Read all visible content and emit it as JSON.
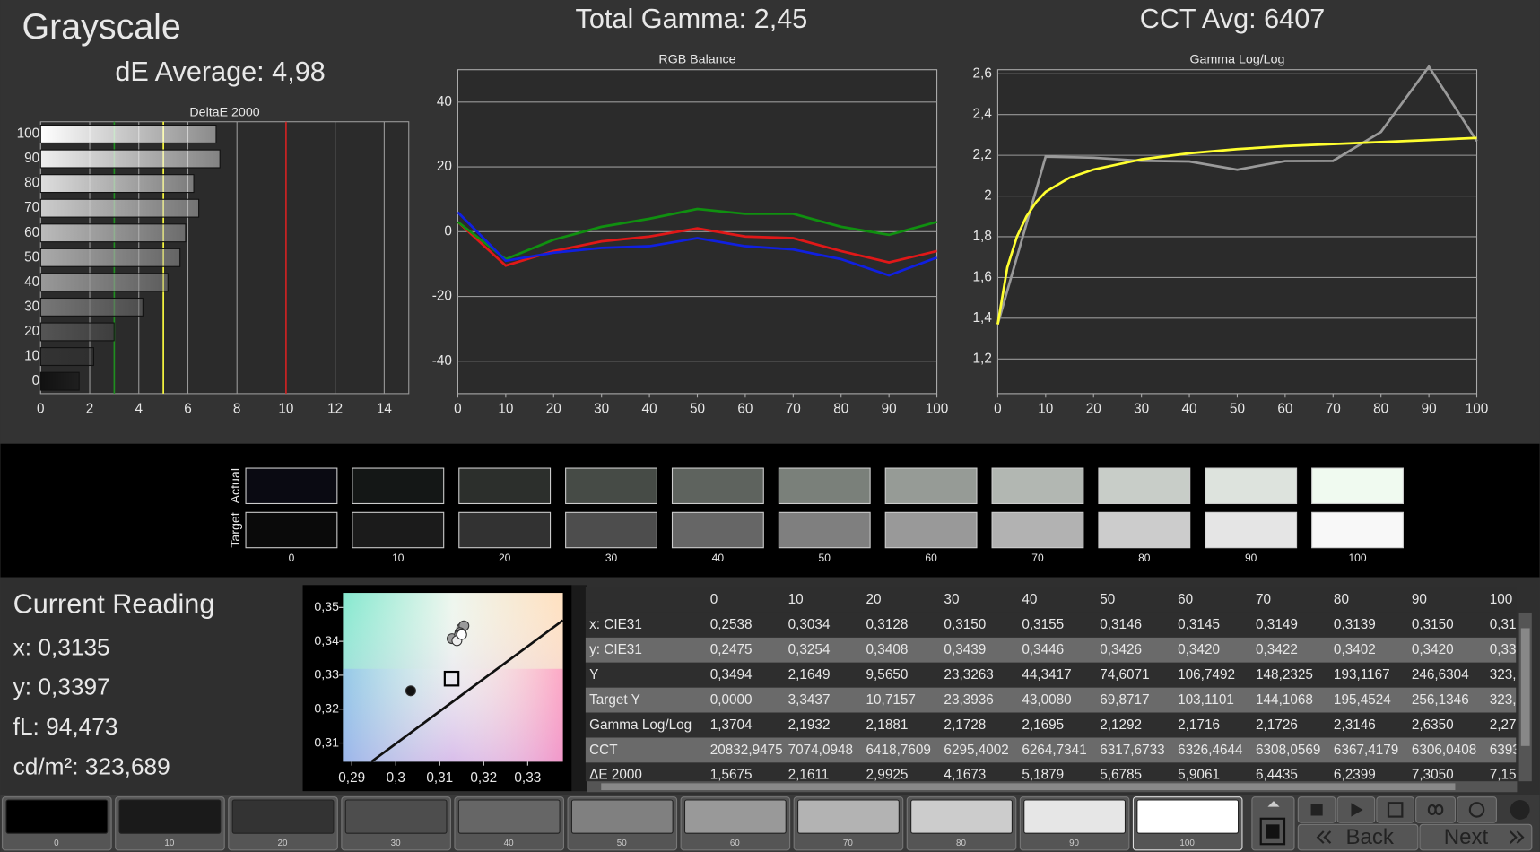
{
  "header": {
    "title": "Grayscale",
    "de_average": "dE Average: 4,98",
    "total_gamma": "Total Gamma: 2,45",
    "cct_avg": "CCT Avg: 6407"
  },
  "chart_data": [
    {
      "type": "bar",
      "orientation": "horizontal",
      "title": "DeltaE 2000",
      "categories": [
        "100",
        "90",
        "80",
        "70",
        "60",
        "50",
        "40",
        "30",
        "20",
        "10",
        "0"
      ],
      "values": [
        7.15,
        7.305,
        6.2399,
        6.4435,
        5.9061,
        5.6785,
        5.1879,
        4.1673,
        2.9925,
        2.1611,
        1.5675
      ],
      "colors": [
        "#ffffff",
        "#eeeeee",
        "#dddddd",
        "#cccccc",
        "#bbbbbb",
        "#aaaaaa",
        "#999999",
        "#777777",
        "#555555",
        "#333333",
        "#111111"
      ],
      "xlim": [
        0,
        15
      ],
      "xticks": [
        0,
        2,
        4,
        6,
        8,
        10,
        12,
        14
      ],
      "grid": true,
      "thresholds": [
        {
          "value": 3,
          "color": "#1f8f1f"
        },
        {
          "value": 5,
          "color": "#ffff40"
        },
        {
          "value": 10,
          "color": "#d02020"
        }
      ]
    },
    {
      "type": "line",
      "title": "RGB Balance",
      "x": [
        0,
        10,
        20,
        30,
        40,
        50,
        60,
        70,
        80,
        90,
        100
      ],
      "series": [
        {
          "color": "#e01818",
          "values": [
            3,
            -10.5,
            -6,
            -3,
            -1.5,
            1,
            -1.5,
            -2,
            -6,
            -9.5,
            -6
          ]
        },
        {
          "color": "#109010",
          "values": [
            3,
            -8.5,
            -2.5,
            1.5,
            4,
            7,
            5.5,
            5.5,
            1.5,
            -1,
            3
          ]
        },
        {
          "color": "#1020e0",
          "values": [
            6,
            -9,
            -6.5,
            -5,
            -4.5,
            -2,
            -4.5,
            -5.5,
            -8.5,
            -13.5,
            -8
          ]
        }
      ],
      "xlim": [
        0,
        100
      ],
      "xticks": [
        0,
        10,
        20,
        30,
        40,
        50,
        60,
        70,
        80,
        90,
        100
      ],
      "ylim": [
        -50,
        50
      ],
      "yticks": [
        -40,
        -20,
        0,
        20,
        40
      ],
      "grid": true
    },
    {
      "type": "line",
      "title": "Gamma Log/Log",
      "x": [
        0,
        10,
        20,
        30,
        40,
        50,
        60,
        70,
        80,
        90,
        100
      ],
      "series": [
        {
          "color": "#9a9a9a",
          "values": [
            1.3704,
            2.1932,
            2.1881,
            2.1728,
            2.1695,
            2.1292,
            2.1716,
            2.1726,
            2.3146,
            2.635,
            2.27
          ]
        },
        {
          "color": "#ffff30",
          "x": [
            0,
            2,
            4,
            6,
            8,
            10,
            15,
            20,
            30,
            40,
            50,
            60,
            70,
            80,
            90,
            100
          ],
          "values": [
            1.37,
            1.65,
            1.8,
            1.9,
            1.97,
            2.02,
            2.09,
            2.13,
            2.18,
            2.21,
            2.23,
            2.245,
            2.255,
            2.265,
            2.275,
            2.285
          ]
        }
      ],
      "xlim": [
        0,
        100
      ],
      "xticks": [
        0,
        10,
        20,
        30,
        40,
        50,
        60,
        70,
        80,
        90,
        100
      ],
      "ylim": [
        1.03,
        2.62
      ],
      "yticks": [
        {
          "value": 1.2,
          "label": "1,2"
        },
        {
          "value": 1.4,
          "label": "1,4"
        },
        {
          "value": 1.6,
          "label": "1,6"
        },
        {
          "value": 1.8,
          "label": "1,8"
        },
        2,
        {
          "value": 2.2,
          "label": "2,2"
        },
        {
          "value": 2.4,
          "label": "2,4"
        },
        {
          "value": 2.6,
          "label": "2,6"
        }
      ],
      "grid": true
    },
    {
      "type": "scatter",
      "series": [
        {
          "x": [
            0.3034,
            0.3128,
            0.315,
            0.3155,
            0.3146,
            0.3145,
            0.3149,
            0.3139,
            0.315
          ],
          "values": [
            0.3254,
            0.3408,
            0.3439,
            0.3446,
            0.3426,
            0.342,
            0.3422,
            0.3402,
            0.342
          ],
          "colors": [
            "#111111",
            "#9a9a9a",
            "#9a9a9a",
            "#9a9a9a",
            "#bbbbbb",
            "#cccccc",
            "#dddddd",
            "#eeeeee",
            "#ffffff"
          ]
        },
        {
          "marker": "square",
          "x": [
            0.3127
          ],
          "values": [
            0.329
          ],
          "colors": [
            "#000000"
          ]
        }
      ],
      "xlim": [
        0.288,
        0.338
      ],
      "xticks": [
        {
          "value": 0.29,
          "label": "0,29"
        },
        {
          "value": 0.3,
          "label": "0,3"
        },
        {
          "value": 0.31,
          "label": "0,31"
        },
        {
          "value": 0.32,
          "label": "0,32"
        },
        {
          "value": 0.33,
          "label": "0,33"
        }
      ],
      "ylim": [
        0.3045,
        0.3543
      ],
      "yticks": [
        {
          "value": 0.31,
          "label": "0,31"
        },
        {
          "value": 0.32,
          "label": "0,32"
        },
        {
          "value": 0.33,
          "label": "0,33"
        },
        {
          "value": 0.34,
          "label": "0,34"
        },
        {
          "value": 0.35,
          "label": "0,35"
        }
      ]
    }
  ],
  "patches": {
    "row_labels": [
      "Actual",
      "Target"
    ],
    "labels": [
      "0",
      "10",
      "20",
      "30",
      "40",
      "50",
      "60",
      "70",
      "80",
      "90",
      "100"
    ],
    "actual": [
      "#0a0a12",
      "#141716",
      "#2c2f2c",
      "#464b46",
      "#5e635e",
      "#7a807a",
      "#969b96",
      "#b2b7b2",
      "#c8cdc8",
      "#dde3dd",
      "#f0faf0"
    ],
    "target": [
      "#0a0a0a",
      "#1b1b1b",
      "#323232",
      "#4d4d4d",
      "#666666",
      "#7f7f7f",
      "#999999",
      "#b2b2b2",
      "#cccccc",
      "#e5e5e5",
      "#f8f8f8"
    ]
  },
  "reading": {
    "title": "Current Reading",
    "lines": [
      "x: 0,3135",
      "y: 0,3397",
      "fL: 94,473",
      "cd/m²: 323,689"
    ]
  },
  "table": {
    "columns": [
      "0",
      "10",
      "20",
      "30",
      "40",
      "50",
      "60",
      "70",
      "80",
      "90",
      "100"
    ],
    "rows": [
      {
        "label": "x: CIE31",
        "cells": [
          "0,2538",
          "0,3034",
          "0,3128",
          "0,3150",
          "0,3155",
          "0,3146",
          "0,3145",
          "0,3149",
          "0,3139",
          "0,3150",
          "0,31"
        ]
      },
      {
        "label": "y: CIE31",
        "cells": [
          "0,2475",
          "0,3254",
          "0,3408",
          "0,3439",
          "0,3446",
          "0,3426",
          "0,3420",
          "0,3422",
          "0,3402",
          "0,3420",
          "0,33"
        ]
      },
      {
        "label": "Y",
        "cells": [
          "0,3494",
          "2,1649",
          "9,5650",
          "23,3263",
          "44,3417",
          "74,6071",
          "106,7492",
          "148,2325",
          "193,1167",
          "246,6304",
          "323,"
        ]
      },
      {
        "label": "Target Y",
        "cells": [
          "0,0000",
          "3,3437",
          "10,7157",
          "23,3936",
          "43,0080",
          "69,8717",
          "103,1101",
          "144,1068",
          "195,4524",
          "256,1346",
          "323,"
        ]
      },
      {
        "label": "Gamma Log/Log",
        "cells": [
          "1,3704",
          "2,1932",
          "2,1881",
          "2,1728",
          "2,1695",
          "2,1292",
          "2,1716",
          "2,1726",
          "2,3146",
          "2,6350",
          "2,27"
        ]
      },
      {
        "label": "CCT",
        "cells": [
          "20832,9475",
          "7074,0948",
          "6418,7609",
          "6295,4002",
          "6264,7341",
          "6317,6733",
          "6326,4644",
          "6308,0569",
          "6367,4179",
          "6306,0408",
          "6393"
        ]
      },
      {
        "label": "ΔE 2000",
        "cells": [
          "1,5675",
          "2,1611",
          "2,9925",
          "4,1673",
          "5,1879",
          "5,6785",
          "5,9061",
          "6,4435",
          "6,2399",
          "7,3050",
          "7,15"
        ]
      }
    ]
  },
  "toolbar": {
    "swatch_labels": [
      "0",
      "10",
      "20",
      "30",
      "40",
      "50",
      "60",
      "70",
      "80",
      "90",
      "100"
    ],
    "swatch_colors": [
      "#000000",
      "#1a1a1a",
      "#333333",
      "#4d4d4d",
      "#666666",
      "#808080",
      "#999999",
      "#b3b3b3",
      "#cccccc",
      "#e6e6e6",
      "#ffffff"
    ],
    "back": "Back",
    "next": "Next"
  }
}
